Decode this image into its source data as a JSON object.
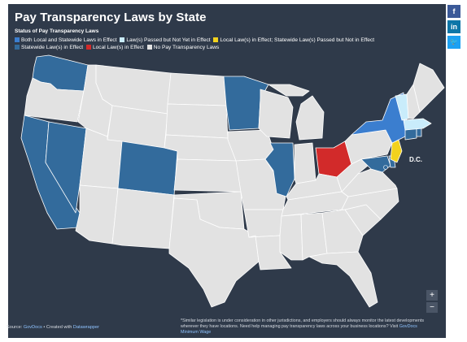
{
  "title": "Pay Transparency Laws by State",
  "legend": {
    "title": "Status of Pay Transparency Laws",
    "items": [
      {
        "label": "Both Local and Statewide Laws in Effect",
        "color": "#3b7ecf"
      },
      {
        "label": "Law(s) Passed but Not Yet in Effect",
        "color": "#c9ecfb"
      },
      {
        "label": "Local Law(s) in Effect; Statewide Law(s) Passed but Not in Effect",
        "color": "#f2d21e"
      },
      {
        "label": "Statewide Law(s) in Effect",
        "color": "#336b9c"
      },
      {
        "label": "Local Law(s) in Effect",
        "color": "#d22a2a"
      },
      {
        "label": "No Pay Transparency Laws",
        "color": "#e2e2e2"
      }
    ]
  },
  "state_status": {
    "WA": "Statewide Law(s) in Effect",
    "CA": "Statewide Law(s) in Effect",
    "NV": "Statewide Law(s) in Effect",
    "CO": "Statewide Law(s) in Effect",
    "MN": "Statewide Law(s) in Effect",
    "IL": "Statewide Law(s) in Effect",
    "OH": "Local Law(s) in Effect",
    "NY": "Both Local and Statewide Laws in Effect",
    "NJ": "Local Law(s) in Effect; Statewide Law(s) Passed but Not in Effect",
    "VT": "Law(s) Passed but Not Yet in Effect",
    "MA": "Law(s) Passed but Not Yet in Effect",
    "CT": "Statewide Law(s) in Effect",
    "RI": "Statewide Law(s) in Effect",
    "MD": "Statewide Law(s) in Effect",
    "DE": "Statewide Law(s) in Effect",
    "DC": "Statewide Law(s) in Effect"
  },
  "dc_label": "D.C.",
  "share": {
    "facebook": "f",
    "linkedin": "in",
    "twitter": "🐦"
  },
  "zoom": {
    "in": "+",
    "out": "−"
  },
  "source": {
    "prefix": "Source:",
    "source_link": "GovDocs",
    "middle": "• Created with",
    "tool_link": "Datawrapper"
  },
  "note": {
    "text": "*Similar legislation is under consideration in other jurisdictions, and employers should always monitor the latest developments wherever they have locations. Need help managing pay transparency laws across your business locations? Visit",
    "link": "GovDocs Minimum Wage"
  }
}
